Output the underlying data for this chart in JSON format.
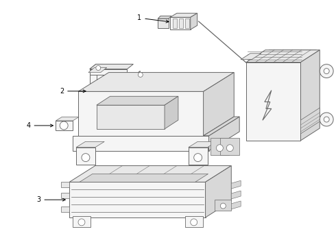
{
  "background_color": "#ffffff",
  "line_color": "#666666",
  "label_color": "#000000",
  "figsize": [
    4.9,
    3.6
  ],
  "dpi": 100,
  "face_light": "#f5f5f5",
  "face_mid": "#e8e8e8",
  "face_dark": "#d8d8d8",
  "face_darker": "#cccccc"
}
